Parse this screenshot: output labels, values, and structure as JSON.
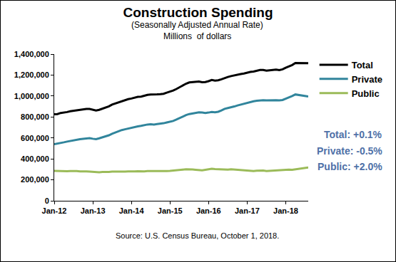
{
  "chart_data": {
    "type": "line",
    "title": "Construction Spending",
    "subtitle": [
      "(Seasonally Adjusted Annual Rate)",
      "Millions  of dollars"
    ],
    "source": "Source: U.S. Census Bureau, October 1, 2018.",
    "annotations": [
      {
        "text": "Total: +0.1%"
      },
      {
        "text": "Private: -0.5%"
      },
      {
        "text": "Public: +2.0%"
      }
    ],
    "categories": [
      "Jan-12",
      null,
      null,
      null,
      null,
      null,
      null,
      null,
      null,
      null,
      null,
      null,
      "Jan-13",
      null,
      null,
      null,
      null,
      null,
      null,
      null,
      null,
      null,
      null,
      null,
      "Jan-14",
      null,
      null,
      null,
      null,
      null,
      null,
      null,
      null,
      null,
      null,
      null,
      "Jan-15",
      null,
      null,
      null,
      null,
      null,
      null,
      null,
      null,
      null,
      null,
      null,
      "Jan-16",
      null,
      null,
      null,
      null,
      null,
      null,
      null,
      null,
      null,
      null,
      null,
      "Jan-17",
      null,
      null,
      null,
      null,
      null,
      null,
      null,
      null,
      null,
      null,
      null,
      "Jan-18",
      null,
      null,
      null,
      null,
      null,
      null,
      null
    ],
    "series": [
      {
        "name": "Total",
        "color": "#000000",
        "values": [
          825000,
          828000,
          838000,
          842000,
          847000,
          855000,
          860000,
          866000,
          868000,
          874000,
          876000,
          877000,
          868000,
          862000,
          868000,
          880000,
          888000,
          901000,
          918000,
          929000,
          941000,
          953000,
          961000,
          970000,
          976000,
          985000,
          992000,
          994000,
          1003000,
          1011000,
          1015000,
          1014000,
          1016000,
          1018000,
          1021000,
          1032000,
          1041000,
          1052000,
          1067000,
          1085000,
          1103000,
          1118000,
          1130000,
          1134000,
          1136000,
          1138000,
          1132000,
          1133000,
          1142000,
          1153000,
          1147000,
          1150000,
          1160000,
          1173000,
          1182000,
          1190000,
          1198000,
          1205000,
          1210000,
          1215000,
          1223000,
          1230000,
          1233000,
          1242000,
          1248000,
          1248000,
          1242000,
          1246000,
          1250000,
          1252000,
          1248000,
          1255000,
          1270000,
          1282000,
          1296000,
          1315000,
          1314000,
          1313000,
          1312000,
          1313000
        ]
      },
      {
        "name": "Private",
        "color": "#31859c",
        "values": [
          540000,
          545000,
          552000,
          558000,
          565000,
          572000,
          575000,
          582000,
          588000,
          592000,
          595000,
          598000,
          592000,
          588000,
          596000,
          605000,
          615000,
          625000,
          640000,
          652000,
          665000,
          675000,
          682000,
          690000,
          698000,
          705000,
          710000,
          715000,
          722000,
          728000,
          730000,
          728000,
          732000,
          735000,
          740000,
          748000,
          755000,
          762000,
          775000,
          790000,
          805000,
          818000,
          828000,
          835000,
          840000,
          845000,
          842000,
          838000,
          842000,
          848000,
          845000,
          850000,
          862000,
          878000,
          885000,
          890000,
          900000,
          910000,
          918000,
          925000,
          935000,
          945000,
          950000,
          955000,
          958000,
          960000,
          958000,
          960000,
          962000,
          960000,
          958000,
          962000,
          975000,
          985000,
          1000000,
          1015000,
          1010000,
          1005000,
          1000000,
          995000
        ]
      },
      {
        "name": "Public",
        "color": "#9bbb59",
        "values": [
          285000,
          283000,
          286000,
          284000,
          282000,
          283000,
          285000,
          284000,
          280000,
          282000,
          281000,
          279000,
          276000,
          274000,
          272000,
          275000,
          273000,
          276000,
          278000,
          277000,
          276000,
          278000,
          279000,
          280000,
          278000,
          280000,
          282000,
          279000,
          281000,
          283000,
          285000,
          286000,
          284000,
          283000,
          281000,
          284000,
          286000,
          290000,
          292000,
          295000,
          298000,
          300000,
          302000,
          299000,
          296000,
          293000,
          290000,
          295000,
          300000,
          305000,
          302000,
          300000,
          298000,
          295000,
          297000,
          300000,
          298000,
          295000,
          292000,
          290000,
          288000,
          285000,
          283000,
          287000,
          290000,
          288000,
          284000,
          286000,
          288000,
          292000,
          290000,
          293000,
          295000,
          297000,
          296000,
          300000,
          304000,
          308000,
          312000,
          318000
        ]
      }
    ],
    "ylim": [
      0,
      1400000
    ],
    "yticks": [
      0,
      {
        "value": 200000,
        "label": "200,000"
      },
      {
        "value": 400000,
        "label": "400,000"
      },
      {
        "value": 600000,
        "label": "600,000"
      },
      {
        "value": 800000,
        "label": "800,000"
      },
      {
        "value": 1000000,
        "label": "1,000,000"
      },
      {
        "value": 1200000,
        "label": "1,200,000"
      },
      {
        "value": 1400000,
        "label": "1,400,000"
      }
    ],
    "grid": false,
    "legend": "right"
  }
}
